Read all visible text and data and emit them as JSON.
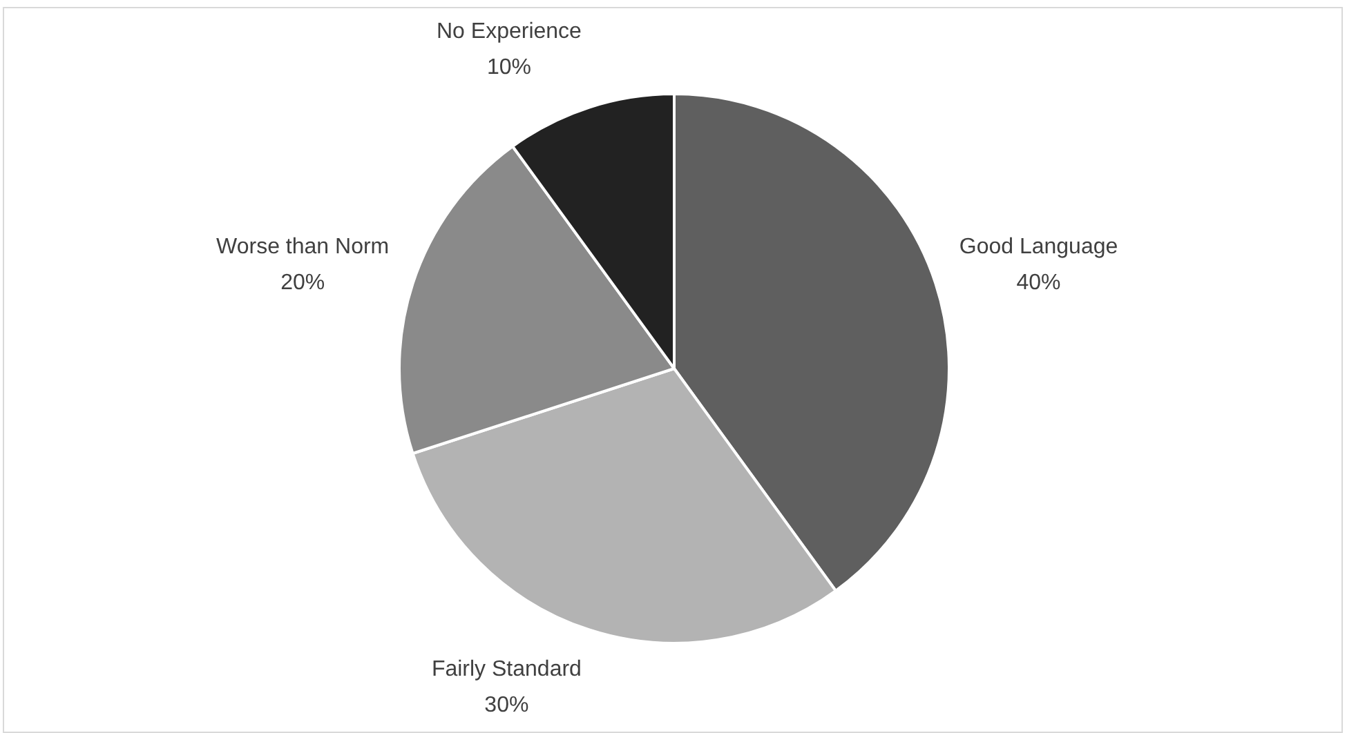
{
  "chart_data": {
    "type": "pie",
    "categories": [
      "Good Language",
      "Fairly Standard",
      "Worse than Norm",
      "No Experience"
    ],
    "values": [
      40,
      30,
      20,
      10
    ],
    "colors": [
      "#5f5f5f",
      "#b3b3b3",
      "#8a8a8a",
      "#222222"
    ],
    "value_labels": [
      "40%",
      "30%",
      "20%",
      "10%"
    ]
  }
}
